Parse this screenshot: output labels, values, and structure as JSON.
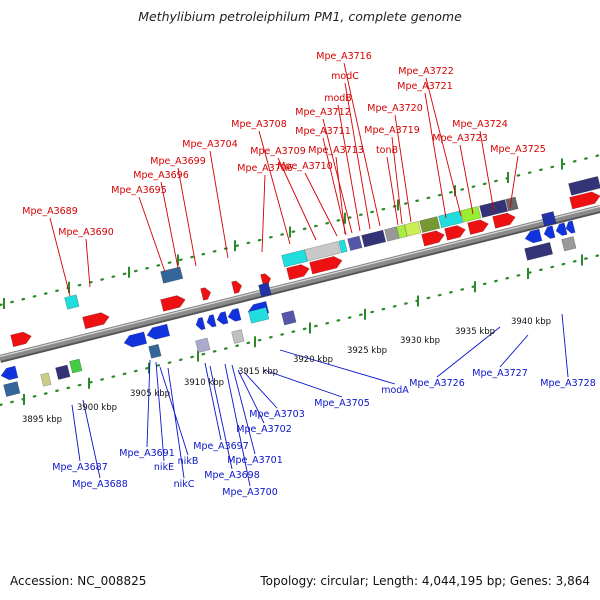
{
  "title": "Methylibium petroleiphilum PM1, complete genome",
  "footer": {
    "accession": "Accession: NC_008825",
    "topology": "Topology: circular; Length: 4,044,195 bp; Genes: 3,864"
  },
  "colors": {
    "forward_label": "#d40000",
    "reverse_label": "#0a14c8",
    "forward_gene": "#ee1111",
    "reverse_gene": "#1133dd",
    "dot_tick": "#2a8a2a",
    "backbone": "#8a8a8a"
  },
  "scale_ticks": [
    "3895 kbp",
    "3900 kbp",
    "3905 kbp",
    "3910 kbp",
    "3915 kbp",
    "3920 kbp",
    "3925 kbp",
    "3930 kbp",
    "3935 kbp",
    "3940 kbp"
  ],
  "forward_labels": [
    "Mpe_A3689",
    "Mpe_A3690",
    "Mpe_A3695",
    "Mpe_A3696",
    "Mpe_A3699",
    "Mpe_A3704",
    "Mpe_A3706",
    "Mpe_A3708",
    "Mpe_A3709",
    "Mpe_A3710",
    "Mpe_A3711",
    "Mpe_A3712",
    "modB",
    "modC",
    "Mpe_A3716",
    "Mpe_A3713",
    "Mpe_A3719",
    "Mpe_A3720",
    "tonB",
    "Mpe_A3721",
    "Mpe_A3722",
    "Mpe_A3724",
    "Mpe_A3723",
    "Mpe_A3725"
  ],
  "reverse_labels": [
    "Mpe_A3687",
    "Mpe_A3688",
    "Mpe_A3691",
    "nikE",
    "nikB",
    "nikC",
    "Mpe_A3697",
    "Mpe_A3698",
    "Mpe_A3700",
    "Mpe_A3701",
    "Mpe_A3702",
    "Mpe_A3703",
    "Mpe_A3705",
    "modA",
    "Mpe_A3726",
    "Mpe_A3727",
    "Mpe_A3728"
  ]
}
